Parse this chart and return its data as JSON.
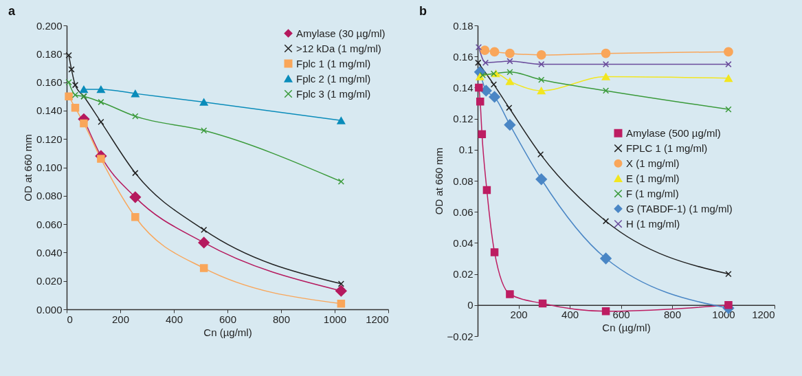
{
  "chart_data": [
    {
      "type": "line",
      "annotations": [
        "a"
      ],
      "xlabel": "Cn (µg/ml)",
      "ylabel": "OD at 660 mm",
      "xlim": [
        0,
        1200
      ],
      "xticks": [
        0,
        200,
        400,
        600,
        800,
        1000,
        1200
      ],
      "ylim": [
        0,
        0.2
      ],
      "yticks": [
        {
          "value": 0,
          "label": "0.000"
        },
        {
          "value": 0.02,
          "label": "0.020"
        },
        {
          "value": 0.04,
          "label": "0.040"
        },
        {
          "value": 0.06,
          "label": "0.060"
        },
        {
          "value": 0.08,
          "label": "0.080"
        },
        {
          "value": 0.1,
          "label": "0.100"
        },
        {
          "value": 0.12,
          "label": "0.120"
        },
        {
          "value": 0.14,
          "label": "0.140"
        },
        {
          "value": 0.16,
          "label": "0.160"
        },
        {
          "value": 0.18,
          "label": "0.180"
        },
        {
          "value": 0.2,
          "label": "0.200"
        }
      ],
      "grid": false,
      "legend": "top right",
      "line_style": "solid",
      "series": [
        {
          "name": "Amylase (30 µg/ml)",
          "color": "#b5195e",
          "marker": "diamond",
          "x": [
            64,
            128,
            256,
            512,
            1024
          ],
          "values": [
            0.134,
            0.108,
            0.079,
            0.047,
            0.013
          ]
        },
        {
          "name": ">12 kDa (1 mg/ml)",
          "color": "#222222",
          "marker": "cross",
          "x": [
            8,
            18,
            32,
            64,
            128,
            256,
            512,
            1024
          ],
          "values": [
            0.179,
            0.169,
            0.158,
            0.15,
            0.132,
            0.096,
            0.056,
            0.018
          ]
        },
        {
          "name": "Fplc 1 (1 mg/ml)",
          "color": "#f9a65a",
          "marker": "square",
          "x": [
            8,
            32,
            64,
            128,
            256,
            512,
            1024
          ],
          "values": [
            0.15,
            0.142,
            0.131,
            0.106,
            0.065,
            0.029,
            0.004
          ]
        },
        {
          "name": "Fplc 2 (1 mg/ml)",
          "color": "#0a8cba",
          "marker": "triangle",
          "x": [
            64,
            128,
            256,
            512,
            1024
          ],
          "values": [
            0.155,
            0.155,
            0.152,
            0.146,
            0.133
          ]
        },
        {
          "name": "Fplc 3 (1 mg/ml)",
          "color": "#3a9a3a",
          "marker": "cross",
          "x": [
            8,
            32,
            64,
            128,
            256,
            512,
            1024
          ],
          "values": [
            0.16,
            0.151,
            0.15,
            0.146,
            0.136,
            0.126,
            0.09
          ]
        }
      ]
    },
    {
      "type": "line",
      "annotations": [
        "b"
      ],
      "xlabel": "Cn (µg/ml)",
      "ylabel": "OD at 660 mm",
      "xlim": [
        40,
        1200
      ],
      "xticks": [
        200,
        400,
        600,
        800,
        1000,
        1200
      ],
      "ylim": [
        -0.02,
        0.18
      ],
      "yticks": [
        -0.02,
        0,
        0.02,
        0.04,
        0.06,
        0.08,
        0.1,
        0.12,
        0.14,
        0.16,
        0.18
      ],
      "grid": false,
      "legend": "right",
      "line_style": "solid",
      "series": [
        {
          "name": "Amylase (500 µg/ml)",
          "color": "#bd1d62",
          "marker": "square",
          "x": [
            45,
            50,
            57,
            76,
            106,
            166,
            294,
            541,
            1020
          ],
          "values": [
            0.14,
            0.131,
            0.11,
            0.074,
            0.034,
            0.007,
            0.001,
            -0.004,
            0
          ]
        },
        {
          "name": "FPLC 1 (1 mg/ml)",
          "color": "#222222",
          "marker": "cross",
          "x": [
            42,
            103,
            163,
            286,
            541,
            1020
          ],
          "values": [
            0.156,
            0.142,
            0.127,
            0.097,
            0.054,
            0.02
          ]
        },
        {
          "name": "X (1 mg/ml)",
          "color": "#f9a65a",
          "marker": "circle",
          "x": [
            68,
            106,
            166,
            289,
            541,
            1020
          ],
          "values": [
            0.164,
            0.163,
            0.162,
            0.161,
            0.162,
            0.163
          ]
        },
        {
          "name": "E (1 mg/ml)",
          "color": "#f2e620",
          "marker": "triangle",
          "x": [
            49,
            111,
            166,
            289,
            541,
            1020
          ],
          "values": [
            0.147,
            0.149,
            0.144,
            0.138,
            0.147,
            0.146
          ]
        },
        {
          "name": "F (1 mg/ml)",
          "color": "#3a9a3a",
          "marker": "cross",
          "x": [
            60,
            103,
            166,
            289,
            541,
            1020
          ],
          "values": [
            0.148,
            0.149,
            0.15,
            0.145,
            0.138,
            0.126
          ]
        },
        {
          "name": "G (TABDF-1) (1 mg/ml)",
          "color": "#4a86c5",
          "marker": "diamond",
          "x": [
            49,
            73,
            106,
            166,
            289,
            541,
            1020
          ],
          "values": [
            0.15,
            0.138,
            0.134,
            0.116,
            0.081,
            0.03,
            -0.002
          ]
        },
        {
          "name": "H (1 mg/ml)",
          "color": "#6a4c9c",
          "marker": "cross",
          "x": [
            44,
            71,
            166,
            289,
            541,
            1020
          ],
          "values": [
            0.166,
            0.156,
            0.157,
            0.155,
            0.155,
            0.155
          ]
        }
      ]
    }
  ]
}
